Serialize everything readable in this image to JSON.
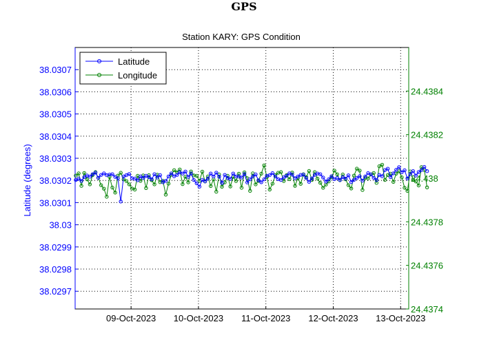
{
  "page": {
    "title": "GPS"
  },
  "chart_data": {
    "type": "line",
    "title": "Station KARY: GPS Condition",
    "ylabel_left": "Latitude (degrees)",
    "ylabel_right": "",
    "x_tick_labels": [
      "09-Oct-2023",
      "10-Oct-2023",
      "11-Oct-2023",
      "12-Oct-2023",
      "13-Oct-2023"
    ],
    "xlim_days": [
      8.17,
      13.12
    ],
    "x_tick_days": [
      9,
      10,
      11,
      12,
      13
    ],
    "ylim_left": [
      38.02962,
      38.0308
    ],
    "yticks_left": [
      38.0297,
      38.0298,
      38.0299,
      38.03,
      38.0301,
      38.0302,
      38.0303,
      38.0304,
      38.0305,
      38.0306,
      38.0307
    ],
    "ytick_labels_left": [
      "38.0297",
      "38.0298",
      "38.0299",
      "38.03",
      "38.0301",
      "38.0302",
      "38.0303",
      "38.0304",
      "38.0305",
      "38.0306",
      "38.0307"
    ],
    "ylim_right": [
      24.4374,
      24.4386
    ],
    "yticks_right": [
      24.4374,
      24.4376,
      24.4378,
      24.438,
      24.4382,
      24.4384
    ],
    "ytick_labels_right": [
      "24.4374",
      "24.4376",
      "24.4378",
      "24.438",
      "24.4382",
      "24.4384"
    ],
    "grid": true,
    "legend_position": "top-left",
    "colors": {
      "latitude": "#0000ff",
      "longitude": "#008000",
      "left_axis": "#0000ff",
      "right_axis": "#008000"
    },
    "series": [
      {
        "name": "Latitude",
        "axis": "left",
        "x_start_day": 8.18,
        "x_step_day": 0.0417,
        "values": [
          38.030202,
          38.030208,
          38.030198,
          38.030215,
          38.030222,
          38.030217,
          38.030228,
          38.030235,
          38.030212,
          38.030225,
          38.030232,
          38.030224,
          38.030226,
          38.030228,
          38.030216,
          38.03021,
          38.030105,
          38.030218,
          38.030224,
          38.030229,
          38.03021,
          38.030208,
          38.030201,
          38.030218,
          38.030211,
          38.030221,
          38.030215,
          38.030205,
          38.030228,
          38.030213,
          38.030224,
          38.030192,
          38.030198,
          38.030218,
          38.030232,
          38.030219,
          38.030225,
          38.030237,
          38.030231,
          38.03024,
          38.030216,
          38.030231,
          38.030202,
          38.030187,
          38.030172,
          38.030203,
          38.030196,
          38.030208,
          38.030231,
          38.030218,
          38.030235,
          38.030217,
          38.030189,
          38.030225,
          38.030212,
          38.030207,
          38.030231,
          38.030218,
          38.030218,
          38.030213,
          38.030229,
          38.030191,
          38.030205,
          38.030218,
          38.030227,
          38.030201,
          38.030192,
          38.030205,
          38.030221,
          38.030224,
          38.030233,
          38.030218,
          38.030206,
          38.030202,
          38.030214,
          38.030221,
          38.030232,
          38.030226,
          38.03021,
          38.030217,
          38.030225,
          38.030226,
          38.030211,
          38.030194,
          38.030209,
          38.030225,
          38.030231,
          38.030228,
          38.030213,
          38.030195,
          38.030205,
          38.030219,
          38.030206,
          38.030211,
          38.030202,
          38.030215,
          38.030208,
          38.030223,
          38.030193,
          38.030203,
          38.030211,
          38.030219,
          38.030199,
          38.030218,
          38.030233,
          38.030227,
          38.030212,
          38.030202,
          38.030225,
          38.030219,
          38.030247,
          38.030253,
          38.030215,
          38.030232,
          38.030248,
          38.03026,
          38.030237,
          38.030246,
          38.030209,
          38.030229,
          38.030242,
          38.030222,
          38.030238,
          38.030247,
          38.030261,
          38.030242
        ]
      },
      {
        "name": "Longitude",
        "axis": "right",
        "x_start_day": 8.18,
        "x_step_day": 0.0417,
        "values": [
          24.438012,
          24.438022,
          24.437965,
          24.438024,
          24.437995,
          24.437972,
          24.438015,
          24.438028,
          24.438002,
          24.437968,
          24.437952,
          24.437915,
          24.438006,
          24.437957,
          24.437934,
          24.438012,
          24.438025,
          24.437995,
          24.437987,
          24.437972,
          24.437953,
          24.437948,
          24.438011,
          24.437988,
          24.438013,
          24.437955,
          24.438014,
          24.437991,
          24.437972,
          24.438016,
          24.437982,
          24.437988,
          24.437925,
          24.437975,
          24.438016,
          24.438037,
          24.438027,
          24.43804,
          24.437973,
          24.438007,
          24.437981,
          24.438031,
          24.438013,
          24.438011,
          24.437988,
          24.43803,
          24.437985,
          24.438008,
          24.437964,
          24.437995,
          24.437938,
          24.438017,
          24.437961,
          24.437981,
          24.438011,
          24.437962,
          24.438007,
          24.437987,
          24.438021,
          24.437956,
          24.438027,
          24.438,
          24.437942,
          24.438022,
          24.437972,
          24.437988,
          24.438021,
          24.438059,
          24.438005,
          24.437948,
          24.437975,
          24.438014,
          24.438025,
          24.438028,
          24.437987,
          24.438014,
          24.437996,
          24.438026,
          24.437965,
          24.438,
          24.437974,
          24.438018,
          24.438005,
          24.438033,
          24.437992,
          24.438028,
          24.437998,
          24.437979,
          24.437956,
          24.437971,
          24.437985,
          24.438004,
          24.438035,
          24.438018,
          24.437991,
          24.438017,
          24.437995,
          24.437968,
          24.437953,
          24.438012,
          24.438044,
          24.438035,
          24.437946,
          24.438002,
          24.437999,
          24.438017,
          24.438024,
          24.437979,
          24.438055,
          24.438062,
          24.437992,
          24.438015,
          24.438021,
          24.437983,
          24.438021,
          24.438032,
          24.438004,
          24.437956,
          24.437942,
          24.438031,
          24.437994,
          24.437985,
          24.437967,
          24.438051,
          24.438038,
          24.437958
        ]
      }
    ]
  }
}
